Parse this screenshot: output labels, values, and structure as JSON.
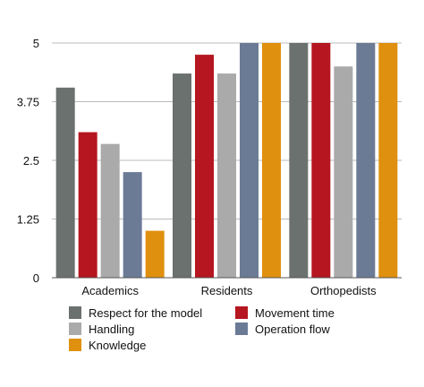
{
  "chart_data": {
    "type": "bar",
    "title": "",
    "xlabel": "",
    "ylabel": "",
    "categories": [
      "Academics",
      "Residents",
      "Orthopedists"
    ],
    "ylim": [
      0,
      5
    ],
    "yticks": [
      "0",
      "1.25",
      "2.5",
      "3.75",
      "5"
    ],
    "grid": "horizontal",
    "legend_position": "bottom",
    "series": [
      {
        "name": "Respect for the model",
        "color": "#6b716e",
        "values": [
          4.05,
          4.35,
          5.0
        ]
      },
      {
        "name": "Movement time",
        "color": "#b5161f",
        "values": [
          3.1,
          4.75,
          5.0
        ]
      },
      {
        "name": "Handling",
        "color": "#aaaaaa",
        "values": [
          2.85,
          4.35,
          4.5
        ]
      },
      {
        "name": "Operation flow",
        "color": "#6b7b96",
        "values": [
          2.25,
          5.0,
          5.0
        ]
      },
      {
        "name": "Knowledge",
        "color": "#e0900f",
        "values": [
          1.0,
          5.0,
          5.0
        ]
      }
    ]
  }
}
